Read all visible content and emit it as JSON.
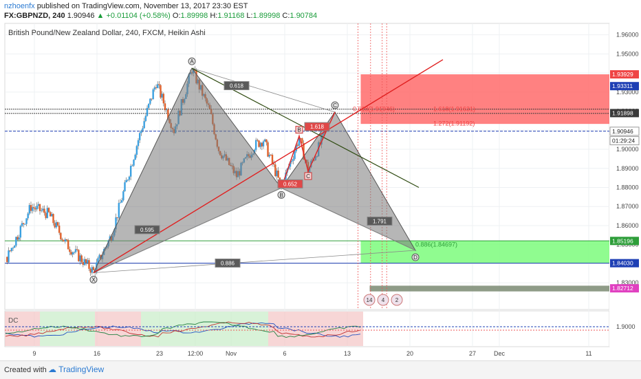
{
  "header": {
    "author": "nzhoenfx",
    "published_text": "published on TradingView.com, November 13, 2017 23:30 EST",
    "symbol": "FX:GBPNZD, 240",
    "last": "1.90946",
    "change": "▲ +0.01104 (+0.58%)",
    "o_label": "O:",
    "o": "1.89998",
    "h_label": "H:",
    "h": "1.91168",
    "l_label": "L:",
    "l": "1.89998",
    "c_label": "C:",
    "c": "1.90784"
  },
  "footer": {
    "created_with": "Created with",
    "brand": "TradingView"
  },
  "chart_data": {
    "type": "candlestick",
    "title": "British Pound/New Zealand Dollar, 240, FXCM, Heikin Ashi",
    "ylim": [
      1.816,
      1.966
    ],
    "y_ticks": [
      1.96,
      1.95,
      1.94,
      1.93,
      1.92,
      1.91,
      1.9,
      1.89,
      1.88,
      1.87,
      1.86,
      1.85,
      1.84,
      1.83
    ],
    "x_ticks": [
      {
        "label": "9",
        "day": 9
      },
      {
        "label": "16",
        "day": 16
      },
      {
        "label": "23",
        "day": 23
      },
      {
        "label": "12:00",
        "day": 27
      },
      {
        "label": "Nov",
        "day": 31
      },
      {
        "label": "6",
        "day": 37
      },
      {
        "label": "13",
        "day": 44
      },
      {
        "label": "20",
        "day": 51
      },
      {
        "label": "27",
        "day": 58
      },
      {
        "label": "Dec",
        "day": 61
      },
      {
        "label": "11",
        "day": 71
      }
    ],
    "price_tags": [
      {
        "value": 1.93929,
        "label": "1.93929",
        "color": "#ef4444"
      },
      {
        "value": 1.93311,
        "label": "1.93311",
        "color": "#1e3fb4"
      },
      {
        "value": 1.91898,
        "label": "1.91898",
        "color": "#3a3a3a"
      },
      {
        "value": 1.90946,
        "label": "1.90946",
        "color": "#ffffff"
      },
      {
        "value": 1.9045,
        "label": "01:29:24",
        "color": "#ffffff"
      },
      {
        "value": 1.85196,
        "label": "1.85196",
        "color": "#2e9e3a"
      },
      {
        "value": 1.8403,
        "label": "1.84030",
        "color": "#1e3fb4"
      },
      {
        "value": 1.82712,
        "label": "1.82712",
        "color": "#e040c0"
      }
    ],
    "harmonic": {
      "points": [
        {
          "label": "X",
          "day": 19,
          "value": 1.8353
        },
        {
          "label": "A",
          "day": 30,
          "value": 1.9425
        },
        {
          "label": "B",
          "day": 40,
          "value": 1.8797
        },
        {
          "label": "C",
          "day": 46,
          "value": 1.9195
        },
        {
          "label": "D",
          "day": 55,
          "value": 1.847
        }
      ],
      "ratios": [
        {
          "label": "0.595",
          "day": 25,
          "value": 1.8575
        },
        {
          "label": "0.618",
          "day": 35,
          "value": 1.933
        },
        {
          "label": "1.791",
          "day": 51,
          "value": 1.862
        },
        {
          "label": "0.886",
          "day": 34,
          "value": 1.84
        }
      ]
    },
    "abcd": {
      "points": [
        {
          "label": "B",
          "day": 42,
          "value": 1.907
        },
        {
          "label": "C",
          "day": 43,
          "value": 1.8885
        }
      ],
      "ratios": [
        {
          "label": "0.652",
          "day": 41,
          "value": 1.8815
        },
        {
          "label": "1.618",
          "day": 44,
          "value": 1.9115
        }
      ]
    },
    "fib_labels": [
      {
        "label": "0.618(1.91946)",
        "day": 48,
        "value": 1.92,
        "color": "#ef4444"
      },
      {
        "label": "1.618(1.91631)",
        "day": 57,
        "value": 1.92,
        "color": "#ef4444"
      },
      {
        "label": "1.272(1.91192)",
        "day": 57,
        "value": 1.9125,
        "color": "#ef4444"
      },
      {
        "label": "0.886(1.84697)",
        "day": 55,
        "value": 1.849,
        "color": "#2e9e3a"
      }
    ],
    "zones": [
      {
        "name": "sell-zone",
        "from": 1.9133,
        "to": 1.9393,
        "color": "#ff6b6b"
      },
      {
        "name": "buy-zone",
        "from": 1.8403,
        "to": 1.852,
        "color": "#7cfc7c"
      },
      {
        "name": "target-box",
        "from": 1.8255,
        "to": 1.8285,
        "color": "#7a8a72"
      }
    ],
    "indicator": {
      "name": "DC",
      "label": "1.9000"
    },
    "event_badges": [
      "14",
      "4",
      "2"
    ]
  }
}
